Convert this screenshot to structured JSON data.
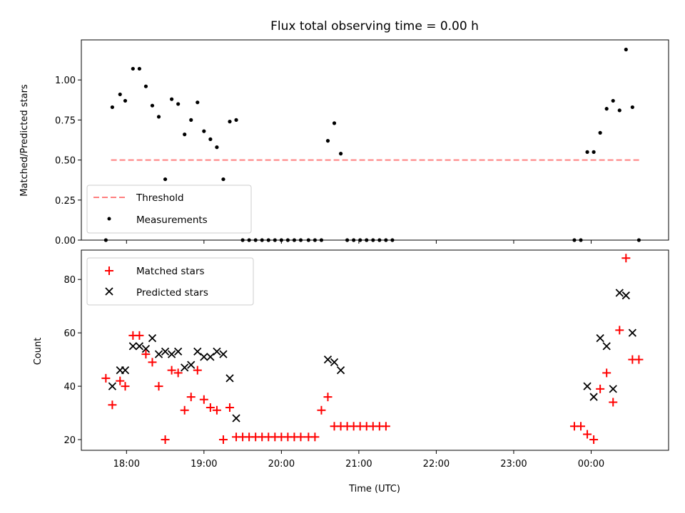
{
  "chart_data": [
    {
      "type": "scatter",
      "title": "Flux total observing time = 0.00 h",
      "xlabel": "",
      "ylabel": "Matched/Predicted stars",
      "ylim": [
        0,
        1.25
      ],
      "yticks": [
        "0.00",
        "0.25",
        "0.50",
        "0.75",
        "1.00"
      ],
      "x_axis": "time (UTC), shared with lower panel",
      "legend": {
        "placement": "lower-left",
        "entries": [
          "Threshold",
          "Measurements"
        ]
      },
      "threshold": {
        "name": "Threshold",
        "value": 0.5,
        "x_start": "17:48",
        "x_end": "00:39",
        "color": "#ff7f7f",
        "style": "dashed"
      },
      "series": [
        {
          "name": "Measurements",
          "color": "#000000",
          "points": [
            [
              "17:44",
              0.0
            ],
            [
              "17:49",
              0.83
            ],
            [
              "17:55",
              0.91
            ],
            [
              "17:59",
              0.87
            ],
            [
              "18:05",
              1.07
            ],
            [
              "18:10",
              1.07
            ],
            [
              "18:15",
              0.96
            ],
            [
              "18:20",
              0.84
            ],
            [
              "18:25",
              0.77
            ],
            [
              "18:30",
              0.38
            ],
            [
              "18:35",
              0.88
            ],
            [
              "18:40",
              0.85
            ],
            [
              "18:45",
              0.66
            ],
            [
              "18:50",
              0.75
            ],
            [
              "18:55",
              0.86
            ],
            [
              "19:00",
              0.68
            ],
            [
              "19:05",
              0.63
            ],
            [
              "19:10",
              0.58
            ],
            [
              "19:15",
              0.38
            ],
            [
              "19:20",
              0.74
            ],
            [
              "19:25",
              0.75
            ],
            [
              "19:30",
              0.0
            ],
            [
              "19:35",
              0.0
            ],
            [
              "19:40",
              0.0
            ],
            [
              "19:45",
              0.0
            ],
            [
              "19:50",
              0.0
            ],
            [
              "19:55",
              0.0
            ],
            [
              "20:00",
              0.0
            ],
            [
              "20:05",
              0.0
            ],
            [
              "20:10",
              0.0
            ],
            [
              "20:15",
              0.0
            ],
            [
              "20:21",
              0.0
            ],
            [
              "20:26",
              0.0
            ],
            [
              "20:31",
              0.0
            ],
            [
              "20:36",
              0.62
            ],
            [
              "20:41",
              0.73
            ],
            [
              "20:46",
              0.54
            ],
            [
              "20:51",
              0.0
            ],
            [
              "20:56",
              0.0
            ],
            [
              "21:01",
              0.0
            ],
            [
              "21:06",
              0.0
            ],
            [
              "21:11",
              0.0
            ],
            [
              "21:16",
              0.0
            ],
            [
              "21:21",
              0.0
            ],
            [
              "21:26",
              0.0
            ],
            [
              "23:47",
              0.0
            ],
            [
              "23:52",
              0.0
            ],
            [
              "23:57",
              0.55
            ],
            [
              "00:02",
              0.55
            ],
            [
              "00:07",
              0.67
            ],
            [
              "00:12",
              0.82
            ],
            [
              "00:17",
              0.87
            ],
            [
              "00:22",
              0.81
            ],
            [
              "00:27",
              1.19
            ],
            [
              "00:32",
              0.83
            ],
            [
              "00:37",
              0.0
            ]
          ]
        }
      ]
    },
    {
      "type": "scatter",
      "title": "",
      "xlabel": "Time (UTC)",
      "ylabel": "Count",
      "ylim": [
        16,
        91
      ],
      "yticks": [
        "20",
        "40",
        "60",
        "80"
      ],
      "xticks": [
        "18:00",
        "19:00",
        "20:00",
        "21:00",
        "22:00",
        "23:00",
        "00:00"
      ],
      "xlim": [
        "17:25",
        "01:00"
      ],
      "legend": {
        "placement": "top-left",
        "entries": [
          "Matched stars",
          "Predicted stars"
        ]
      },
      "series": [
        {
          "name": "Matched stars",
          "marker": "+",
          "color": "#ff0000",
          "points": [
            [
              "17:44",
              43
            ],
            [
              "17:49",
              33
            ],
            [
              "17:55",
              42
            ],
            [
              "17:59",
              40
            ],
            [
              "18:05",
              59
            ],
            [
              "18:10",
              59
            ],
            [
              "18:15",
              52
            ],
            [
              "18:20",
              49
            ],
            [
              "18:25",
              40
            ],
            [
              "18:30",
              20
            ],
            [
              "18:35",
              46
            ],
            [
              "18:40",
              45
            ],
            [
              "18:45",
              31
            ],
            [
              "18:50",
              36
            ],
            [
              "18:55",
              46
            ],
            [
              "19:00",
              35
            ],
            [
              "19:05",
              32
            ],
            [
              "19:10",
              31
            ],
            [
              "19:15",
              20
            ],
            [
              "19:20",
              32
            ],
            [
              "19:25",
              21
            ],
            [
              "19:30",
              21
            ],
            [
              "19:35",
              21
            ],
            [
              "19:40",
              21
            ],
            [
              "19:45",
              21
            ],
            [
              "19:50",
              21
            ],
            [
              "19:55",
              21
            ],
            [
              "20:00",
              21
            ],
            [
              "20:05",
              21
            ],
            [
              "20:10",
              21
            ],
            [
              "20:15",
              21
            ],
            [
              "20:21",
              21
            ],
            [
              "20:26",
              21
            ],
            [
              "20:31",
              31
            ],
            [
              "20:36",
              36
            ],
            [
              "20:41",
              25
            ],
            [
              "20:46",
              25
            ],
            [
              "20:51",
              25
            ],
            [
              "20:56",
              25
            ],
            [
              "21:01",
              25
            ],
            [
              "21:06",
              25
            ],
            [
              "21:11",
              25
            ],
            [
              "21:16",
              25
            ],
            [
              "21:21",
              25
            ],
            [
              "23:47",
              25
            ],
            [
              "23:52",
              25
            ],
            [
              "23:57",
              22
            ],
            [
              "00:02",
              20
            ],
            [
              "00:07",
              39
            ],
            [
              "00:12",
              45
            ],
            [
              "00:17",
              34
            ],
            [
              "00:22",
              61
            ],
            [
              "00:27",
              88
            ],
            [
              "00:32",
              50
            ],
            [
              "00:37",
              50
            ]
          ]
        },
        {
          "name": "Predicted stars",
          "marker": "x",
          "color": "#000000",
          "points": [
            [
              "17:49",
              40
            ],
            [
              "17:55",
              46
            ],
            [
              "17:59",
              46
            ],
            [
              "18:05",
              55
            ],
            [
              "18:10",
              55
            ],
            [
              "18:15",
              54
            ],
            [
              "18:20",
              58
            ],
            [
              "18:25",
              52
            ],
            [
              "18:30",
              53
            ],
            [
              "18:35",
              52
            ],
            [
              "18:40",
              53
            ],
            [
              "18:45",
              47
            ],
            [
              "18:50",
              48
            ],
            [
              "18:55",
              53
            ],
            [
              "19:00",
              51
            ],
            [
              "19:05",
              51
            ],
            [
              "19:10",
              53
            ],
            [
              "19:15",
              52
            ],
            [
              "19:20",
              43
            ],
            [
              "19:25",
              28
            ],
            [
              "20:36",
              50
            ],
            [
              "20:41",
              49
            ],
            [
              "20:46",
              46
            ],
            [
              "23:57",
              40
            ],
            [
              "00:02",
              36
            ],
            [
              "00:07",
              58
            ],
            [
              "00:12",
              55
            ],
            [
              "00:17",
              39
            ],
            [
              "00:22",
              75
            ],
            [
              "00:27",
              74
            ],
            [
              "00:32",
              60
            ]
          ]
        }
      ]
    }
  ]
}
